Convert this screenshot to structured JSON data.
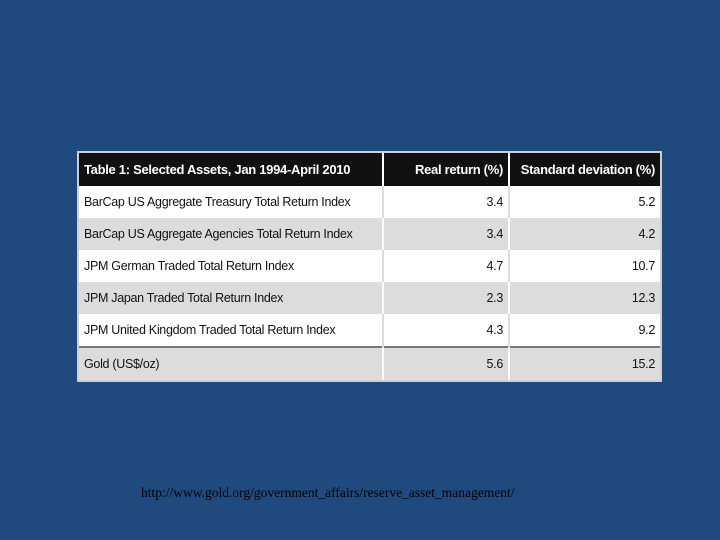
{
  "table": {
    "headers": [
      "Table 1: Selected Assets, Jan 1994-April 2010",
      "Real return (%)",
      "Standard deviation (%)"
    ],
    "rows": [
      [
        "BarCap US Aggregate Treasury Total Return Index",
        "3.4",
        "5.2"
      ],
      [
        "BarCap US Aggregate Agencies Total Return Index",
        "3.4",
        "4.2"
      ],
      [
        "JPM German Traded Total Return Index",
        "4.7",
        "10.7"
      ],
      [
        "JPM Japan Traded Total Return Index",
        "2.3",
        "12.3"
      ],
      [
        "JPM United Kingdom Traded Total Return Index",
        "4.3",
        "9.2"
      ],
      [
        "Gold (US$/oz)",
        "5.6",
        "15.2"
      ]
    ]
  },
  "source_link": "http://www.gold.org/government_affairs/reserve_asset_management/",
  "colors": {
    "background": "#204a7d",
    "header_bg": "#111111",
    "row_alt": "#dcdcdc"
  }
}
